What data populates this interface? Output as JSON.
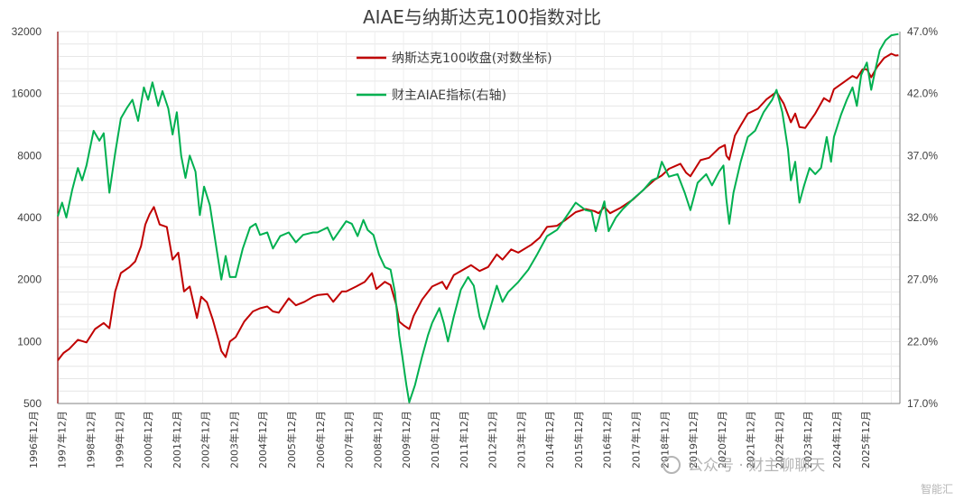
{
  "chart_data": {
    "type": "line",
    "title": "AIAE与纳斯达克100指数对比",
    "x": [
      "1996年12月",
      "1997年12月",
      "1998年12月",
      "1999年12月",
      "2000年12月",
      "2001年12月",
      "2002年12月",
      "2003年12月",
      "2004年12月",
      "2005年12月",
      "2006年12月",
      "2007年12月",
      "2008年12月",
      "2009年12月",
      "2010年12月",
      "2011年12月",
      "2012年12月",
      "2013年12月",
      "2014年12月",
      "2015年12月",
      "2016年12月",
      "2017年12月",
      "2018年12月",
      "2019年12月",
      "2020年12月",
      "2021年12月",
      "2022年12月",
      "2023年12月",
      "2024年12月",
      "2025年12月"
    ],
    "y_left": {
      "scale": "log2",
      "ticks": [
        "500",
        "1000",
        "2000",
        "4000",
        "8000",
        "16000",
        "32000"
      ],
      "ylim": [
        500,
        32000
      ]
    },
    "y_right": {
      "ticks": [
        "17.0%",
        "22.0%",
        "27.0%",
        "32.0%",
        "37.0%",
        "42.0%",
        "47.0%"
      ],
      "ylim": [
        17,
        47
      ]
    },
    "legend_position": "top-center",
    "series": [
      {
        "name": "纳斯达克100收盘(对数坐标)",
        "axis": "left",
        "color": "#c00000",
        "points": [
          [
            1996.9,
            810
          ],
          [
            1997.1,
            880
          ],
          [
            1997.3,
            920
          ],
          [
            1997.6,
            1020
          ],
          [
            1997.9,
            990
          ],
          [
            1998.2,
            1150
          ],
          [
            1998.5,
            1230
          ],
          [
            1998.7,
            1160
          ],
          [
            1998.9,
            1750
          ],
          [
            1999.1,
            2150
          ],
          [
            1999.4,
            2300
          ],
          [
            1999.6,
            2450
          ],
          [
            1999.8,
            2900
          ],
          [
            1999.95,
            3700
          ],
          [
            2000.1,
            4150
          ],
          [
            2000.25,
            4500
          ],
          [
            2000.45,
            3700
          ],
          [
            2000.7,
            3600
          ],
          [
            2000.9,
            2500
          ],
          [
            2001.1,
            2700
          ],
          [
            2001.3,
            1750
          ],
          [
            2001.5,
            1850
          ],
          [
            2001.75,
            1300
          ],
          [
            2001.9,
            1650
          ],
          [
            2002.1,
            1550
          ],
          [
            2002.3,
            1280
          ],
          [
            2002.5,
            1020
          ],
          [
            2002.6,
            900
          ],
          [
            2002.75,
            840
          ],
          [
            2002.9,
            1000
          ],
          [
            2003.1,
            1050
          ],
          [
            2003.4,
            1250
          ],
          [
            2003.7,
            1400
          ],
          [
            2003.95,
            1450
          ],
          [
            2004.2,
            1480
          ],
          [
            2004.4,
            1400
          ],
          [
            2004.6,
            1380
          ],
          [
            2004.95,
            1620
          ],
          [
            2005.2,
            1500
          ],
          [
            2005.5,
            1560
          ],
          [
            2005.8,
            1650
          ],
          [
            2005.95,
            1680
          ],
          [
            2006.3,
            1700
          ],
          [
            2006.5,
            1560
          ],
          [
            2006.8,
            1750
          ],
          [
            2006.95,
            1750
          ],
          [
            2007.3,
            1850
          ],
          [
            2007.6,
            1950
          ],
          [
            2007.85,
            2150
          ],
          [
            2008.0,
            1800
          ],
          [
            2008.3,
            1950
          ],
          [
            2008.5,
            1880
          ],
          [
            2008.7,
            1500
          ],
          [
            2008.8,
            1250
          ],
          [
            2008.95,
            1200
          ],
          [
            2009.15,
            1150
          ],
          [
            2009.3,
            1330
          ],
          [
            2009.6,
            1600
          ],
          [
            2009.95,
            1850
          ],
          [
            2010.3,
            1950
          ],
          [
            2010.45,
            1800
          ],
          [
            2010.7,
            2100
          ],
          [
            2010.95,
            2200
          ],
          [
            2011.3,
            2350
          ],
          [
            2011.6,
            2200
          ],
          [
            2011.9,
            2300
          ],
          [
            2012.2,
            2650
          ],
          [
            2012.4,
            2500
          ],
          [
            2012.7,
            2800
          ],
          [
            2012.95,
            2700
          ],
          [
            2013.4,
            2950
          ],
          [
            2013.7,
            3200
          ],
          [
            2013.95,
            3600
          ],
          [
            2014.3,
            3650
          ],
          [
            2014.6,
            3900
          ],
          [
            2014.95,
            4250
          ],
          [
            2015.3,
            4400
          ],
          [
            2015.6,
            4300
          ],
          [
            2015.75,
            4200
          ],
          [
            2015.95,
            4500
          ],
          [
            2016.15,
            4200
          ],
          [
            2016.5,
            4450
          ],
          [
            2016.95,
            4900
          ],
          [
            2017.4,
            5600
          ],
          [
            2017.7,
            6100
          ],
          [
            2017.95,
            6400
          ],
          [
            2018.2,
            6900
          ],
          [
            2018.6,
            7300
          ],
          [
            2018.8,
            6600
          ],
          [
            2018.95,
            6350
          ],
          [
            2019.3,
            7600
          ],
          [
            2019.6,
            7800
          ],
          [
            2019.95,
            8700
          ],
          [
            2020.15,
            9000
          ],
          [
            2020.2,
            8000
          ],
          [
            2020.3,
            7650
          ],
          [
            2020.5,
            10000
          ],
          [
            2020.7,
            11200
          ],
          [
            2020.95,
            12800
          ],
          [
            2021.3,
            13500
          ],
          [
            2021.6,
            15000
          ],
          [
            2021.95,
            16300
          ],
          [
            2022.2,
            14300
          ],
          [
            2022.45,
            11600
          ],
          [
            2022.6,
            12800
          ],
          [
            2022.75,
            11000
          ],
          [
            2022.95,
            10900
          ],
          [
            2023.3,
            12800
          ],
          [
            2023.6,
            15200
          ],
          [
            2023.8,
            14600
          ],
          [
            2023.95,
            16800
          ],
          [
            2024.3,
            18200
          ],
          [
            2024.6,
            19500
          ],
          [
            2024.75,
            19000
          ],
          [
            2024.95,
            21000
          ],
          [
            2025.1,
            21000
          ],
          [
            2025.25,
            19200
          ],
          [
            2025.45,
            21500
          ],
          [
            2025.7,
            23800
          ],
          [
            2025.95,
            25000
          ],
          [
            2026.1,
            24500
          ],
          [
            2026.2,
            24600
          ]
        ]
      },
      {
        "name": "财主AIAE指标(右轴)",
        "axis": "right",
        "color": "#00b050",
        "points": [
          [
            1996.9,
            32.1
          ],
          [
            1997.05,
            33.2
          ],
          [
            1997.2,
            32.0
          ],
          [
            1997.4,
            34.2
          ],
          [
            1997.6,
            36.0
          ],
          [
            1997.75,
            35.0
          ],
          [
            1997.9,
            36.2
          ],
          [
            1998.15,
            39.0
          ],
          [
            1998.35,
            38.2
          ],
          [
            1998.5,
            38.8
          ],
          [
            1998.7,
            34.0
          ],
          [
            1998.9,
            37.2
          ],
          [
            1999.1,
            40.0
          ],
          [
            1999.3,
            40.8
          ],
          [
            1999.5,
            41.5
          ],
          [
            1999.7,
            39.8
          ],
          [
            1999.9,
            42.5
          ],
          [
            2000.05,
            41.5
          ],
          [
            2000.2,
            42.9
          ],
          [
            2000.4,
            41.0
          ],
          [
            2000.55,
            42.2
          ],
          [
            2000.75,
            40.8
          ],
          [
            2000.9,
            38.7
          ],
          [
            2001.05,
            40.5
          ],
          [
            2001.2,
            37.0
          ],
          [
            2001.35,
            35.2
          ],
          [
            2001.5,
            37.0
          ],
          [
            2001.7,
            35.7
          ],
          [
            2001.85,
            32.2
          ],
          [
            2002.0,
            34.5
          ],
          [
            2002.2,
            33.0
          ],
          [
            2002.4,
            30.0
          ],
          [
            2002.6,
            27.0
          ],
          [
            2002.75,
            28.9
          ],
          [
            2002.9,
            27.2
          ],
          [
            2003.1,
            27.2
          ],
          [
            2003.35,
            29.5
          ],
          [
            2003.6,
            31.2
          ],
          [
            2003.8,
            31.5
          ],
          [
            2003.95,
            30.6
          ],
          [
            2004.2,
            30.8
          ],
          [
            2004.4,
            29.5
          ],
          [
            2004.65,
            30.5
          ],
          [
            2004.95,
            30.8
          ],
          [
            2005.2,
            30.0
          ],
          [
            2005.45,
            30.6
          ],
          [
            2005.8,
            30.8
          ],
          [
            2005.95,
            30.8
          ],
          [
            2006.3,
            31.2
          ],
          [
            2006.5,
            30.2
          ],
          [
            2006.8,
            31.2
          ],
          [
            2006.95,
            31.7
          ],
          [
            2007.15,
            31.5
          ],
          [
            2007.35,
            30.5
          ],
          [
            2007.55,
            31.8
          ],
          [
            2007.7,
            31.0
          ],
          [
            2007.9,
            30.6
          ],
          [
            2008.1,
            29.0
          ],
          [
            2008.3,
            28.0
          ],
          [
            2008.5,
            27.8
          ],
          [
            2008.65,
            26.0
          ],
          [
            2008.8,
            22.5
          ],
          [
            2008.9,
            20.9
          ],
          [
            2009.05,
            18.5
          ],
          [
            2009.15,
            17.1
          ],
          [
            2009.35,
            18.5
          ],
          [
            2009.6,
            20.8
          ],
          [
            2009.8,
            22.5
          ],
          [
            2009.95,
            23.5
          ],
          [
            2010.2,
            24.7
          ],
          [
            2010.35,
            23.5
          ],
          [
            2010.5,
            22.0
          ],
          [
            2010.7,
            24.0
          ],
          [
            2010.95,
            26.2
          ],
          [
            2011.2,
            27.2
          ],
          [
            2011.4,
            26.5
          ],
          [
            2011.6,
            24.0
          ],
          [
            2011.75,
            23.0
          ],
          [
            2011.95,
            24.5
          ],
          [
            2012.2,
            26.5
          ],
          [
            2012.4,
            25.2
          ],
          [
            2012.6,
            26.0
          ],
          [
            2012.95,
            26.8
          ],
          [
            2013.3,
            27.8
          ],
          [
            2013.6,
            29.0
          ],
          [
            2013.95,
            30.5
          ],
          [
            2014.3,
            31.0
          ],
          [
            2014.6,
            32.0
          ],
          [
            2014.95,
            33.2
          ],
          [
            2015.3,
            32.6
          ],
          [
            2015.5,
            32.5
          ],
          [
            2015.65,
            30.9
          ],
          [
            2015.8,
            32.2
          ],
          [
            2015.95,
            33.3
          ],
          [
            2016.1,
            30.9
          ],
          [
            2016.35,
            32.0
          ],
          [
            2016.6,
            32.7
          ],
          [
            2016.95,
            33.5
          ],
          [
            2017.3,
            34.2
          ],
          [
            2017.6,
            35.0
          ],
          [
            2017.8,
            35.2
          ],
          [
            2017.95,
            36.5
          ],
          [
            2018.2,
            35.3
          ],
          [
            2018.5,
            35.5
          ],
          [
            2018.75,
            34.0
          ],
          [
            2018.95,
            32.6
          ],
          [
            2019.2,
            34.8
          ],
          [
            2019.5,
            35.5
          ],
          [
            2019.7,
            34.6
          ],
          [
            2019.95,
            35.7
          ],
          [
            2020.1,
            36.2
          ],
          [
            2020.2,
            33.5
          ],
          [
            2020.3,
            31.5
          ],
          [
            2020.45,
            34.0
          ],
          [
            2020.7,
            36.5
          ],
          [
            2020.95,
            38.5
          ],
          [
            2021.2,
            39.0
          ],
          [
            2021.5,
            40.5
          ],
          [
            2021.8,
            41.5
          ],
          [
            2021.95,
            42.3
          ],
          [
            2022.15,
            40.5
          ],
          [
            2022.35,
            37.5
          ],
          [
            2022.45,
            35.0
          ],
          [
            2022.6,
            36.5
          ],
          [
            2022.75,
            33.2
          ],
          [
            2022.9,
            34.5
          ],
          [
            2023.1,
            36.0
          ],
          [
            2023.3,
            35.5
          ],
          [
            2023.5,
            36.0
          ],
          [
            2023.7,
            38.5
          ],
          [
            2023.85,
            36.5
          ],
          [
            2023.95,
            38.5
          ],
          [
            2024.2,
            40.3
          ],
          [
            2024.4,
            41.5
          ],
          [
            2024.6,
            42.5
          ],
          [
            2024.75,
            41.0
          ],
          [
            2024.9,
            43.5
          ],
          [
            2025.1,
            44.5
          ],
          [
            2025.25,
            42.3
          ],
          [
            2025.4,
            44.0
          ],
          [
            2025.55,
            45.5
          ],
          [
            2025.75,
            46.3
          ],
          [
            2025.95,
            46.7
          ],
          [
            2026.2,
            46.8
          ]
        ]
      }
    ]
  },
  "watermark": {
    "text": "公众号 · 财主聊聊天",
    "source": "智能汇"
  }
}
